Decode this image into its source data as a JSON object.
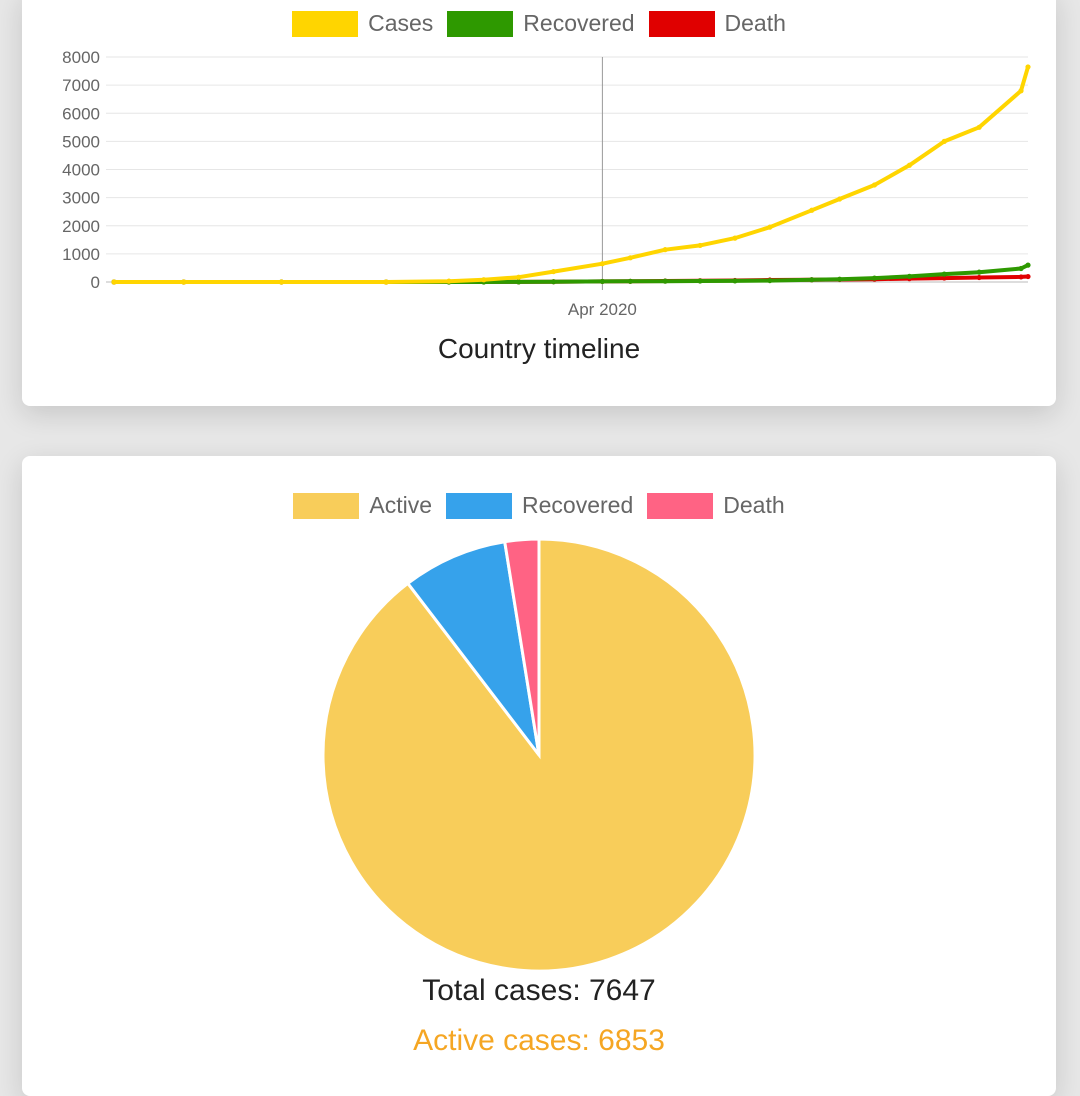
{
  "timeline_card": {
    "title": "Country timeline",
    "legend": [
      {
        "label": "Cases",
        "color": "#ffd500"
      },
      {
        "label": "Recovered",
        "color": "#2e9900"
      },
      {
        "label": "Death",
        "color": "#e00000"
      }
    ]
  },
  "summary_card": {
    "legend": [
      {
        "label": "Active",
        "color": "#f8cd5a"
      },
      {
        "label": "Recovered",
        "color": "#36a2eb"
      },
      {
        "label": "Death",
        "color": "#ff6384"
      }
    ],
    "total_cases": "Total cases: 7647",
    "active_cases": "Active cases: 6853",
    "active_color": "#f5a623"
  },
  "chart_data": [
    {
      "type": "line",
      "title": "Country timeline",
      "xlabel": "",
      "ylabel": "",
      "ylim": [
        0,
        8000
      ],
      "yticks": [
        0,
        1000,
        2000,
        3000,
        4000,
        5000,
        6000,
        7000,
        8000
      ],
      "xticks": [
        {
          "label": "Apr 2020",
          "date": "2020-04-01"
        }
      ],
      "grid": true,
      "legend_position": "top",
      "x": [
        "2020-01-22",
        "2020-02-01",
        "2020-02-15",
        "2020-03-01",
        "2020-03-10",
        "2020-03-15",
        "2020-03-20",
        "2020-03-25",
        "2020-04-01",
        "2020-04-05",
        "2020-04-10",
        "2020-04-15",
        "2020-04-20",
        "2020-04-25",
        "2020-05-01",
        "2020-05-05",
        "2020-05-10",
        "2020-05-15",
        "2020-05-20",
        "2020-05-25",
        "2020-05-31",
        "2020-06-01"
      ],
      "series": [
        {
          "name": "Cases",
          "color": "#ffd500",
          "values": [
            0,
            0,
            0,
            0,
            30,
            80,
            170,
            370,
            650,
            860,
            1150,
            1300,
            1560,
            1950,
            2550,
            2950,
            3450,
            4150,
            5000,
            5500,
            6800,
            7647
          ]
        },
        {
          "name": "Recovered",
          "color": "#2e9900",
          "values": [
            0,
            0,
            0,
            0,
            0,
            0,
            5,
            10,
            20,
            25,
            30,
            35,
            40,
            50,
            80,
            100,
            140,
            200,
            280,
            350,
            480,
            600
          ]
        },
        {
          "name": "Death",
          "color": "#e00000",
          "values": [
            0,
            0,
            0,
            0,
            1,
            2,
            5,
            10,
            20,
            25,
            35,
            45,
            55,
            70,
            80,
            90,
            100,
            120,
            140,
            160,
            180,
            194
          ]
        }
      ]
    },
    {
      "type": "pie",
      "title": "",
      "legend_position": "top",
      "categories": [
        "Active",
        "Recovered",
        "Death"
      ],
      "values": [
        6853,
        600,
        194
      ],
      "colors": [
        "#f8cd5a",
        "#36a2eb",
        "#ff6384"
      ]
    }
  ]
}
